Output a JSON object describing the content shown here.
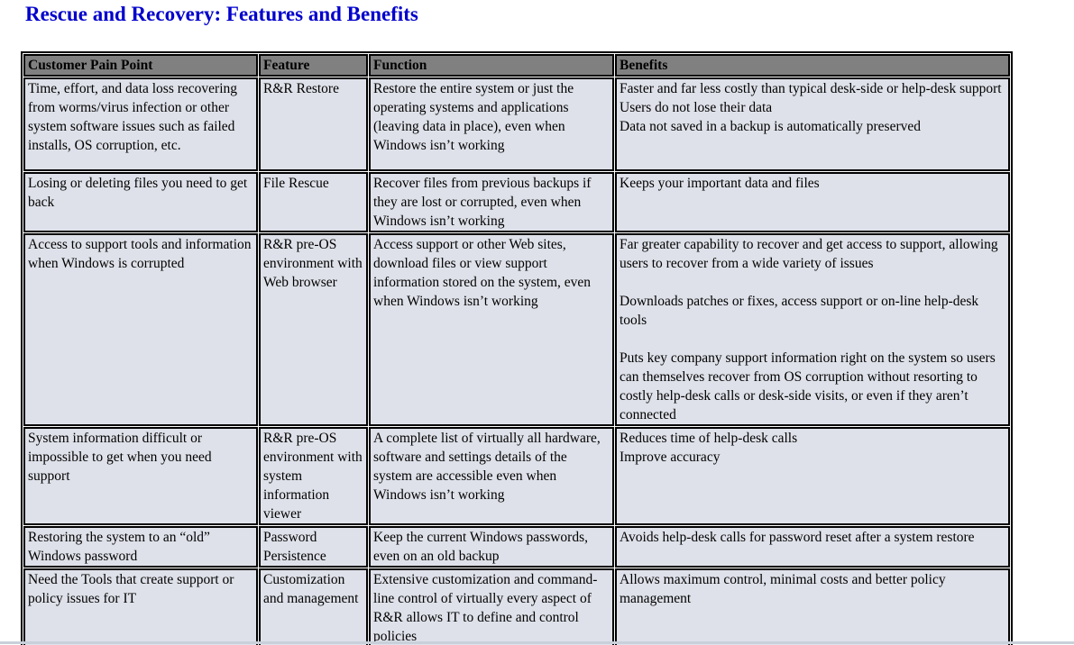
{
  "page": {
    "title": "Rescue and Recovery: Features and Benefits"
  },
  "colors": {
    "title": "#0000cc",
    "header_bg": "#808080",
    "cell_bg": "#dee1e9",
    "border": "#000000"
  },
  "table": {
    "columns": [
      "Customer Pain Point",
      "Feature",
      "Function",
      "Benefits"
    ],
    "rows": [
      {
        "pain_point": "Time, effort, and data loss recovering from worms/virus infection or other system software issues such as failed installs, OS corruption, etc.",
        "feature": "R&R Restore",
        "function": "Restore the entire system or just the operating systems and applications (leaving data in place), even when Windows isn’t working",
        "benefits": "Faster and far less costly than typical desk-side or help-desk support\nUsers do not lose their data\nData not saved in a backup is automatically preserved"
      },
      {
        "pain_point": "Losing or deleting files you need to get back",
        "feature": "File Rescue",
        "function": "Recover files from previous backups if they are lost or corrupted, even when Windows isn’t working",
        "benefits": "Keeps your important data and files"
      },
      {
        "pain_point": "Access to support tools and information when Windows is corrupted",
        "feature": "R&R pre-OS environment with Web browser",
        "function": "Access support or other Web sites, download files or view support information stored on the system, even when Windows isn’t working",
        "benefits": "Far greater capability to recover and get access to support, allowing users to recover from a wide variety of issues\n\nDownloads patches or fixes, access support or on-line help-desk tools\n\nPuts key company support information right on the system so users can themselves recover from OS corruption without resorting to costly help-desk calls or desk-side visits, or even if they aren’t connected"
      },
      {
        "pain_point": "System information difficult or impossible to get when you need support",
        "feature": "R&R pre-OS environment with system information viewer",
        "function": "A complete list of virtually all hardware, software and settings details of the system are accessible even when Windows isn’t working",
        "benefits": "Reduces time of help-desk calls\nImprove accuracy"
      },
      {
        "pain_point": "Restoring the system to an “old” Windows password",
        "feature": "Password Persistence",
        "function": "Keep the current Windows passwords, even on an old backup",
        "benefits": "Avoids help-desk calls for password reset after a system restore"
      },
      {
        "pain_point": "Need the Tools that create support or policy issues for IT",
        "feature": "Customization and management",
        "function": "Extensive customization and command-line control of virtually every aspect of R&R allows IT to define and control policies",
        "benefits": "Allows maximum control, minimal costs and better policy management"
      }
    ]
  }
}
